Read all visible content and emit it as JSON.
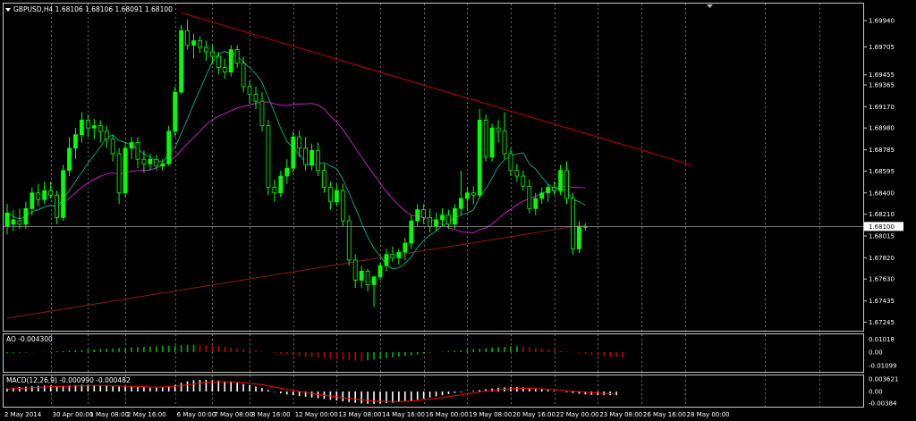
{
  "header": {
    "symbol_line": "GBPUSD,H4  1.68106 1.68106 1.68091 1.68100",
    "ao_label": "AO -0.004300",
    "macd_label": "MACD(12,26,9) -0.000990 -0.000482"
  },
  "colors": {
    "background": "#000000",
    "bull_candle": "#00ff00",
    "bear_candle": "#000000",
    "ma_fast": "#00a080",
    "ma_mid": "#c020c0",
    "ma_slow": "#8b1a1a",
    "trendline": "#c00000",
    "grid": "#b0b0b0",
    "ao_up": "#00b000",
    "ao_down": "#c00000",
    "macd_hist": "#ffffff",
    "macd_signal": "#ff0000"
  },
  "chart_data": {
    "type": "candlestick",
    "main": {
      "price_ticks": [
        "1.69940",
        "1.69705",
        "1.69455",
        "1.69365",
        "1.69170",
        "1.68980",
        "1.68785",
        "1.68595",
        "1.68400",
        "1.68210",
        "1.68015",
        "1.67820",
        "1.67630",
        "1.67435",
        "1.67245"
      ],
      "current_price": "1.68100",
      "ylim": [
        1.672,
        1.7006
      ],
      "ohlc": [
        [
          1.681,
          1.683,
          1.6803,
          1.6822
        ],
        [
          1.6812,
          1.6825,
          1.6806,
          1.6816
        ],
        [
          1.6815,
          1.6826,
          1.6808,
          1.6812
        ],
        [
          1.6812,
          1.6832,
          1.6808,
          1.6826
        ],
        [
          1.6826,
          1.6845,
          1.682,
          1.684
        ],
        [
          1.684,
          1.6848,
          1.6828,
          1.6834
        ],
        [
          1.6834,
          1.685,
          1.683,
          1.6842
        ],
        [
          1.6842,
          1.685,
          1.6835,
          1.6838
        ],
        [
          1.6838,
          1.6842,
          1.6812,
          1.6818
        ],
        [
          1.6818,
          1.6865,
          1.6815,
          1.686
        ],
        [
          1.686,
          1.689,
          1.6855,
          1.688
        ],
        [
          1.688,
          1.6898,
          1.687,
          1.6892
        ],
        [
          1.6892,
          1.6912,
          1.6885,
          1.6905
        ],
        [
          1.6905,
          1.691,
          1.689,
          1.6898
        ],
        [
          1.6898,
          1.6906,
          1.6888,
          1.69
        ],
        [
          1.69,
          1.6905,
          1.6885,
          1.6895
        ],
        [
          1.6895,
          1.69,
          1.688,
          1.6888
        ],
        [
          1.6888,
          1.6892,
          1.6868,
          1.6875
        ],
        [
          1.6875,
          1.688,
          1.683,
          1.684
        ],
        [
          1.684,
          1.6885,
          1.6836,
          1.688
        ],
        [
          1.688,
          1.689,
          1.687,
          1.6885
        ],
        [
          1.6885,
          1.689,
          1.6862,
          1.687
        ],
        [
          1.687,
          1.6878,
          1.6858,
          1.6866
        ],
        [
          1.6866,
          1.6875,
          1.686,
          1.687
        ],
        [
          1.687,
          1.6874,
          1.686,
          1.6864
        ],
        [
          1.6864,
          1.687,
          1.686,
          1.6866
        ],
        [
          1.6866,
          1.69,
          1.6864,
          1.6895
        ],
        [
          1.6895,
          1.6935,
          1.689,
          1.693
        ],
        [
          1.693,
          1.699,
          1.6928,
          1.6985
        ],
        [
          1.6985,
          1.6995,
          1.6968,
          1.6972
        ],
        [
          1.6972,
          1.6982,
          1.696,
          1.6976
        ],
        [
          1.6976,
          1.698,
          1.6965,
          1.697
        ],
        [
          1.697,
          1.6976,
          1.6958,
          1.6966
        ],
        [
          1.6966,
          1.6972,
          1.6955,
          1.6962
        ],
        [
          1.6962,
          1.6966,
          1.6946,
          1.6952
        ],
        [
          1.6952,
          1.696,
          1.6942,
          1.6948
        ],
        [
          1.6948,
          1.6972,
          1.6944,
          1.6968
        ],
        [
          1.6968,
          1.6972,
          1.6952,
          1.6956
        ],
        [
          1.6956,
          1.6962,
          1.693,
          1.6935
        ],
        [
          1.6935,
          1.694,
          1.692,
          1.6928
        ],
        [
          1.6928,
          1.6935,
          1.6915,
          1.6922
        ],
        [
          1.6922,
          1.693,
          1.6895,
          1.69
        ],
        [
          1.69,
          1.6905,
          1.6838,
          1.6845
        ],
        [
          1.6845,
          1.6852,
          1.6832,
          1.684
        ],
        [
          1.684,
          1.686,
          1.6836,
          1.6855
        ],
        [
          1.6855,
          1.687,
          1.6848,
          1.6862
        ],
        [
          1.6862,
          1.6895,
          1.6858,
          1.689
        ],
        [
          1.689,
          1.6896,
          1.6872,
          1.688
        ],
        [
          1.688,
          1.689,
          1.686,
          1.6865
        ],
        [
          1.6865,
          1.6884,
          1.686,
          1.6878
        ],
        [
          1.6878,
          1.6885,
          1.6855,
          1.686
        ],
        [
          1.686,
          1.6866,
          1.684,
          1.6845
        ],
        [
          1.6845,
          1.685,
          1.6825,
          1.6832
        ],
        [
          1.6832,
          1.6848,
          1.6828,
          1.6842
        ],
        [
          1.6842,
          1.6848,
          1.681,
          1.6815
        ],
        [
          1.6815,
          1.682,
          1.6775,
          1.678
        ],
        [
          1.678,
          1.6785,
          1.6755,
          1.6762
        ],
        [
          1.6762,
          1.6775,
          1.6755,
          1.677
        ],
        [
          1.677,
          1.6772,
          1.6752,
          1.6758
        ],
        [
          1.6758,
          1.6765,
          1.6738,
          1.6765
        ],
        [
          1.6765,
          1.6778,
          1.6762,
          1.6775
        ],
        [
          1.6775,
          1.679,
          1.677,
          1.6785
        ],
        [
          1.6785,
          1.6792,
          1.6778,
          1.6782
        ],
        [
          1.6782,
          1.679,
          1.6776,
          1.6787
        ],
        [
          1.6787,
          1.68,
          1.678,
          1.6795
        ],
        [
          1.6795,
          1.682,
          1.679,
          1.6815
        ],
        [
          1.6815,
          1.683,
          1.681,
          1.6825
        ],
        [
          1.6825,
          1.683,
          1.6812,
          1.6818
        ],
        [
          1.6818,
          1.6826,
          1.6805,
          1.681
        ],
        [
          1.681,
          1.6822,
          1.6806,
          1.6816
        ],
        [
          1.6816,
          1.6826,
          1.681,
          1.682
        ],
        [
          1.682,
          1.6825,
          1.6808,
          1.6812
        ],
        [
          1.6812,
          1.683,
          1.6808,
          1.6826
        ],
        [
          1.6826,
          1.686,
          1.682,
          1.6835
        ],
        [
          1.6835,
          1.6845,
          1.6825,
          1.684
        ],
        [
          1.684,
          1.6846,
          1.683,
          1.6838
        ],
        [
          1.6838,
          1.6915,
          1.6835,
          1.6905
        ],
        [
          1.6905,
          1.691,
          1.6868,
          1.6872
        ],
        [
          1.6872,
          1.6902,
          1.6868,
          1.6898
        ],
        [
          1.6898,
          1.6905,
          1.6885,
          1.6895
        ],
        [
          1.6895,
          1.6912,
          1.687,
          1.6875
        ],
        [
          1.6875,
          1.688,
          1.6855,
          1.686
        ],
        [
          1.686,
          1.6866,
          1.685,
          1.6855
        ],
        [
          1.6855,
          1.686,
          1.6842,
          1.6846
        ],
        [
          1.6846,
          1.6852,
          1.6822,
          1.6826
        ],
        [
          1.6826,
          1.684,
          1.682,
          1.6835
        ],
        [
          1.6835,
          1.6845,
          1.683,
          1.684
        ],
        [
          1.684,
          1.6848,
          1.6832,
          1.6845
        ],
        [
          1.6845,
          1.685,
          1.6838,
          1.6842
        ],
        [
          1.6842,
          1.6865,
          1.6838,
          1.686
        ],
        [
          1.686,
          1.6868,
          1.683,
          1.6835
        ],
        [
          1.6835,
          1.684,
          1.6785,
          1.679
        ],
        [
          1.679,
          1.6815,
          1.6786,
          1.681
        ],
        [
          1.681,
          1.6813,
          1.6806,
          1.681
        ]
      ],
      "trendline_points": [
        [
          28,
          1.7001
        ],
        [
          110,
          1.6865
        ]
      ],
      "horizontal_line_price": 1.681
    },
    "time_labels": [
      {
        "i": 0,
        "t": "2 May 2014"
      },
      {
        "i": 7,
        "t": "30 Apr 00:00"
      },
      {
        "i": 13,
        "t": "1 May 08:00"
      },
      {
        "i": 19,
        "t": "2 May 16:00"
      },
      {
        "i": 27,
        "t": "6 May 00:00"
      },
      {
        "i": 33,
        "t": "7 May 08:00"
      },
      {
        "i": 39,
        "t": "8 May 16:00"
      },
      {
        "i": 46,
        "t": "12 May 00:00"
      },
      {
        "i": 53,
        "t": "13 May 08:00"
      },
      {
        "i": 60,
        "t": "14 May 16:00"
      },
      {
        "i": 67,
        "t": "16 May 00:00"
      },
      {
        "i": 74,
        "t": "19 May 08:00"
      },
      {
        "i": 81,
        "t": "20 May 16:00"
      },
      {
        "i": 88,
        "t": "22 May 00:00"
      },
      {
        "i": 95,
        "t": "23 May 08:00"
      },
      {
        "i": 102,
        "t": "26 May 16:00"
      },
      {
        "i": 109,
        "t": "28 May 00:00"
      }
    ],
    "ao": {
      "ticks": [
        "0.01018",
        "0.00",
        "-0.01099"
      ],
      "values": [
        -0.001,
        -0.0008,
        -0.0006,
        -0.0004,
        -0.0002,
        0.0,
        0.0003,
        0.0006,
        0.0008,
        0.001,
        0.0012,
        0.0015,
        0.0018,
        0.002,
        0.0022,
        0.0025,
        0.0028,
        0.003,
        0.0032,
        0.0035,
        0.0038,
        0.004,
        0.0043,
        0.0046,
        0.0049,
        0.005,
        0.0052,
        0.0054,
        0.0056,
        0.0058,
        0.006,
        0.0058,
        0.0056,
        0.0052,
        0.0048,
        0.0042,
        0.0036,
        0.003,
        0.0024,
        0.0018,
        0.0012,
        0.0006,
        0.0,
        -0.0006,
        -0.0012,
        -0.0018,
        -0.0024,
        -0.003,
        -0.0036,
        -0.004,
        -0.0044,
        -0.0048,
        -0.0052,
        -0.0056,
        -0.006,
        -0.0064,
        -0.0068,
        -0.007,
        -0.0066,
        -0.006,
        -0.0054,
        -0.0048,
        -0.0042,
        -0.0036,
        -0.003,
        -0.0024,
        -0.0018,
        -0.0012,
        -0.0006,
        0.0,
        0.0004,
        0.0008,
        0.0012,
        0.0016,
        0.002,
        0.0024,
        0.0028,
        0.0032,
        0.0036,
        0.004,
        0.0044,
        0.0048,
        0.005,
        0.0046,
        0.004,
        0.0034,
        0.0028,
        0.0022,
        0.0016,
        0.001,
        0.0004,
        -0.0002,
        -0.0008,
        -0.0014,
        -0.002,
        -0.0026,
        -0.0032,
        -0.0036,
        -0.004,
        -0.0043
      ]
    },
    "macd": {
      "ticks": [
        "0.003621",
        "0.00",
        "-0.00384"
      ],
      "hist": [
        0.0008,
        0.001,
        0.0012,
        0.0013,
        0.0014,
        0.0015,
        0.0016,
        0.0016,
        0.0015,
        0.0015,
        0.0016,
        0.0017,
        0.0018,
        0.0018,
        0.0017,
        0.0016,
        0.0015,
        0.0014,
        0.0013,
        0.0013,
        0.0013,
        0.0012,
        0.0011,
        0.001,
        0.001,
        0.0011,
        0.0014,
        0.0018,
        0.0023,
        0.0027,
        0.003,
        0.0031,
        0.0031,
        0.003,
        0.0029,
        0.0027,
        0.0025,
        0.0023,
        0.002,
        0.0017,
        0.0013,
        0.0009,
        0.0004,
        -0.0001,
        -0.0005,
        -0.0008,
        -0.001,
        -0.0012,
        -0.0014,
        -0.0016,
        -0.0018,
        -0.002,
        -0.0022,
        -0.0024,
        -0.0026,
        -0.0028,
        -0.003,
        -0.0032,
        -0.0033,
        -0.0033,
        -0.0032,
        -0.0031,
        -0.003,
        -0.0028,
        -0.0026,
        -0.0024,
        -0.0022,
        -0.0019,
        -0.0016,
        -0.0013,
        -0.001,
        -0.0007,
        -0.0004,
        -0.0002,
        0.0,
        0.0002,
        0.0004,
        0.0006,
        0.0008,
        0.001,
        0.0011,
        0.0012,
        0.0012,
        0.0011,
        0.001,
        0.0008,
        0.0006,
        0.0004,
        0.0002,
        0.0,
        -0.0002,
        -0.0004,
        -0.0006,
        -0.0008,
        -0.0009,
        -0.001,
        -0.001,
        -0.001,
        -0.001
      ],
      "signal": [
        0.0006,
        0.0007,
        0.0008,
        0.0009,
        0.001,
        0.0011,
        0.0012,
        0.0013,
        0.0013,
        0.0014,
        0.0014,
        0.0015,
        0.0015,
        0.0016,
        0.0016,
        0.0016,
        0.0016,
        0.0015,
        0.0015,
        0.0014,
        0.0014,
        0.0013,
        0.0013,
        0.0012,
        0.0012,
        0.0012,
        0.0013,
        0.0014,
        0.0016,
        0.0018,
        0.002,
        0.0022,
        0.0024,
        0.0025,
        0.0026,
        0.0026,
        0.0026,
        0.0025,
        0.0024,
        0.0022,
        0.002,
        0.0018,
        0.0015,
        0.0012,
        0.0009,
        0.0006,
        0.0003,
        0.0,
        -0.0003,
        -0.0005,
        -0.0008,
        -0.001,
        -0.0012,
        -0.0014,
        -0.0016,
        -0.0018,
        -0.002,
        -0.0022,
        -0.0024,
        -0.0025,
        -0.0026,
        -0.0027,
        -0.0027,
        -0.0027,
        -0.0026,
        -0.0025,
        -0.0024,
        -0.0022,
        -0.002,
        -0.0018,
        -0.0016,
        -0.0014,
        -0.0011,
        -0.0009,
        -0.0006,
        -0.0004,
        -0.0001,
        0.0001,
        0.0003,
        0.0005,
        0.0006,
        0.0007,
        0.0008,
        0.0008,
        0.0008,
        0.0008,
        0.0007,
        0.0006,
        0.0005,
        0.0004,
        0.0002,
        0.0001,
        0.0,
        -0.0002,
        -0.0003,
        -0.0004,
        -0.0005,
        -0.0006,
        -0.0005
      ]
    }
  }
}
